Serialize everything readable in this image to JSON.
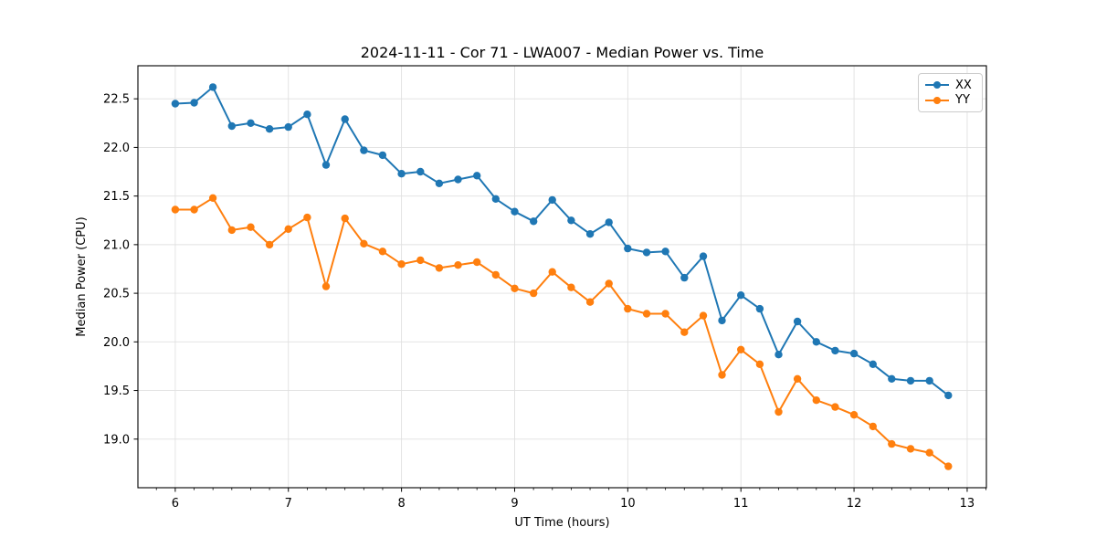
{
  "title": "2024-11-11 - Cor 71 - LWA007 - Median Power vs. Time",
  "chart_data": {
    "type": "line",
    "title": "2024-11-11 - Cor 71 - LWA007 - Median Power vs. Time",
    "xlabel": "UT Time (hours)",
    "ylabel": "Median Power (CPU)",
    "xlim": [
      5.67,
      13.17
    ],
    "ylim": [
      18.5,
      22.84
    ],
    "grid": true,
    "legend_position": "upper right",
    "x_ticks": [
      6,
      7,
      8,
      9,
      10,
      11,
      12,
      13
    ],
    "x_tick_labels": [
      "6",
      "7",
      "8",
      "9",
      "10",
      "11",
      "12",
      "13"
    ],
    "x_minor_step": 0.1666667,
    "y_ticks": [
      19.0,
      19.5,
      20.0,
      20.5,
      21.0,
      21.5,
      22.0,
      22.5
    ],
    "y_tick_labels": [
      "19.0",
      "19.5",
      "20.0",
      "20.5",
      "21.0",
      "21.5",
      "22.0",
      "22.5"
    ],
    "x": [
      6.0,
      6.167,
      6.333,
      6.5,
      6.667,
      6.833,
      7.0,
      7.167,
      7.333,
      7.5,
      7.667,
      7.833,
      8.0,
      8.167,
      8.333,
      8.5,
      8.667,
      8.833,
      9.0,
      9.167,
      9.333,
      9.5,
      9.667,
      9.833,
      10.0,
      10.167,
      10.333,
      10.5,
      10.667,
      10.833,
      11.0,
      11.167,
      11.333,
      11.5,
      11.667,
      11.833,
      12.0,
      12.167,
      12.333,
      12.5,
      12.667,
      12.833
    ],
    "series": [
      {
        "name": "XX",
        "color": "#1f77b4",
        "values": [
          22.45,
          22.46,
          22.62,
          22.22,
          22.25,
          22.19,
          22.21,
          22.34,
          21.82,
          22.29,
          21.97,
          21.92,
          21.73,
          21.75,
          21.63,
          21.67,
          21.71,
          21.47,
          21.34,
          21.24,
          21.46,
          21.25,
          21.11,
          21.23,
          20.96,
          20.92,
          20.93,
          20.66,
          20.88,
          20.22,
          20.48,
          20.34,
          19.87,
          20.21,
          20.0,
          19.91,
          19.88,
          19.77,
          19.62,
          19.6,
          19.6,
          19.45
        ]
      },
      {
        "name": "YY",
        "color": "#ff7f0e",
        "values": [
          21.36,
          21.36,
          21.48,
          21.15,
          21.18,
          21.0,
          21.16,
          21.28,
          20.57,
          21.27,
          21.01,
          20.93,
          20.8,
          20.84,
          20.76,
          20.79,
          20.82,
          20.69,
          20.55,
          20.5,
          20.72,
          20.56,
          20.41,
          20.6,
          20.34,
          20.29,
          20.29,
          20.1,
          20.27,
          19.66,
          19.92,
          19.77,
          19.28,
          19.62,
          19.4,
          19.33,
          19.25,
          19.13,
          18.95,
          18.9,
          18.86,
          18.72
        ]
      }
    ],
    "style": {
      "grid_color": "#e0e0e0",
      "spine_color": "#000000",
      "background": "#ffffff",
      "marker_radius": 4.2,
      "line_width": 2
    }
  },
  "legend": {
    "items": [
      {
        "label": "XX",
        "color": "#1f77b4"
      },
      {
        "label": "YY",
        "color": "#ff7f0e"
      }
    ]
  }
}
